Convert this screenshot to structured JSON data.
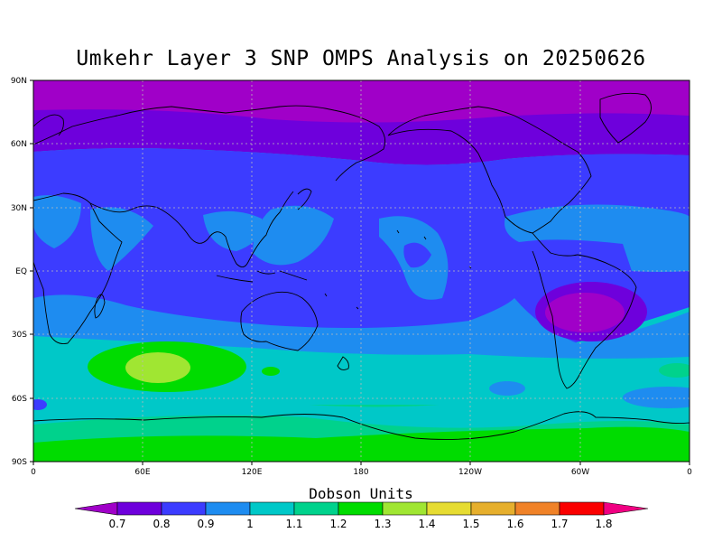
{
  "title": "Umkehr Layer 3 SNP OMPS Analysis on 20250626",
  "map": {
    "lat_labels": [
      "90N",
      "60N",
      "30N",
      "EQ",
      "30S",
      "60S",
      "90S"
    ],
    "lon_labels": [
      "0",
      "60E",
      "120E",
      "180",
      "120W",
      "60W",
      "0"
    ]
  },
  "colorbar": {
    "title": "Dobson Units",
    "levels": [
      "0.7",
      "0.8",
      "0.9",
      "1",
      "1.1",
      "1.2",
      "1.3",
      "1.4",
      "1.5",
      "1.6",
      "1.7",
      "1.8"
    ],
    "colors": {
      "lt07": "#a000c8",
      "c07_08": "#6e00dc",
      "c08_09": "#3c3cff",
      "c09_10": "#1e8cf0",
      "c10_11": "#00c8c8",
      "c11_12": "#00d28c",
      "c12_13": "#00dc00",
      "c13_14": "#a0e632",
      "c14_15": "#e6dc32",
      "c15_16": "#e6af2d",
      "c16_17": "#f08228",
      "c17_18": "#fa0000",
      "gt18": "#f00082"
    }
  }
}
